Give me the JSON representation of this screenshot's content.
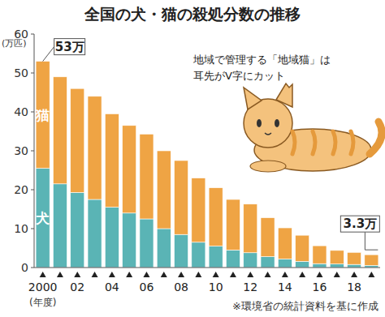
{
  "chart_data": {
    "type": "bar",
    "title": "全国の犬・猫の殺処分数の推移",
    "y_label": "(万匹)",
    "x_label": "(年度)",
    "categories": [
      "2000",
      null,
      "02",
      null,
      "04",
      null,
      "06",
      null,
      "08",
      null,
      "10",
      null,
      "12",
      null,
      "14",
      null,
      "16",
      null,
      "18",
      null
    ],
    "series": [
      {
        "name": "犬",
        "color": "#5ab4b5",
        "values": [
          25.5,
          21.5,
          19.3,
          17.5,
          15.5,
          14,
          12.5,
          10,
          8.5,
          6.5,
          5.5,
          4.5,
          3.8,
          2.8,
          2.2,
          1.6,
          1.0,
          0.9,
          0.8,
          0.55
        ]
      },
      {
        "name": "猫",
        "color": "#efa444",
        "values": [
          27.5,
          27.5,
          26.7,
          26.5,
          24,
          22.5,
          21.8,
          20,
          19,
          16.5,
          15,
          13,
          12.5,
          10,
          8,
          6.7,
          4.6,
          3.5,
          3.1,
          2.75
        ]
      }
    ],
    "stacked": true,
    "ylim": [
      0,
      60
    ],
    "yticks": [
      0,
      10,
      20,
      30,
      40,
      50,
      60
    ],
    "grid": false,
    "annotations": [
      {
        "text": "53万",
        "index": 0,
        "value": 53
      },
      {
        "text": "3.3万",
        "index": 19,
        "value": 3.3
      }
    ],
    "callout": [
      "地域で管理する「地域猫」は",
      "耳先がV字にカット"
    ],
    "note": "※環境省の統計資料を基に作成"
  }
}
